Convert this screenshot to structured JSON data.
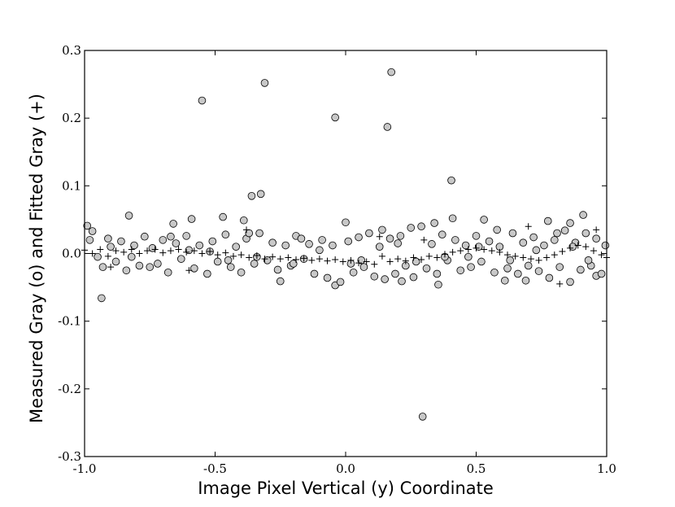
{
  "chart_data": {
    "type": "scatter",
    "title": "",
    "xlabel": "Image Pixel Vertical (y)  Coordinate",
    "ylabel": "Measured Gray (o) and Fitted Gray (+)",
    "xlim": [
      -1.0,
      1.0
    ],
    "ylim": [
      -0.3,
      0.3
    ],
    "x_ticks": [
      "-1.0",
      "-0.5",
      "0.0",
      "0.5",
      "1.0"
    ],
    "y_ticks": [
      "0.3",
      "0.2",
      "0.1",
      "0.0",
      "-0.1",
      "-0.2",
      "-0.3"
    ],
    "grid": false,
    "legend": "none",
    "series": [
      {
        "marker": "circle",
        "color": "#c8c8c8",
        "edge_color": "#000000",
        "points": [
          [
            -0.55,
            0.226
          ],
          [
            -0.31,
            0.252
          ],
          [
            -0.04,
            0.201
          ],
          [
            0.16,
            0.187
          ],
          [
            0.175,
            0.268
          ],
          [
            0.405,
            0.108
          ],
          [
            -0.36,
            0.085
          ],
          [
            -0.325,
            0.088
          ],
          [
            -0.83,
            0.056
          ],
          [
            -0.47,
            0.054
          ],
          [
            -0.59,
            0.051
          ],
          [
            -0.39,
            0.049
          ],
          [
            0.41,
            0.052
          ],
          [
            0.53,
            0.05
          ],
          [
            0.91,
            0.057
          ],
          [
            0.86,
            0.045
          ],
          [
            0.775,
            0.048
          ],
          [
            -0.66,
            0.044
          ],
          [
            0.0,
            0.046
          ],
          [
            -0.935,
            -0.066
          ],
          [
            0.295,
            -0.241
          ],
          [
            0.355,
            -0.046
          ],
          [
            -0.04,
            -0.047
          ],
          [
            0.215,
            -0.041
          ],
          [
            -0.25,
            -0.041
          ],
          [
            -0.99,
            0.041
          ],
          [
            0.61,
            -0.04
          ],
          [
            0.96,
            -0.033
          ],
          [
            -0.97,
            0.033
          ],
          [
            -0.93,
            -0.02
          ],
          [
            -0.91,
            0.022
          ],
          [
            -0.88,
            -0.012
          ],
          [
            -0.86,
            0.018
          ],
          [
            -0.84,
            -0.025
          ],
          [
            -0.81,
            0.012
          ],
          [
            -0.79,
            -0.018
          ],
          [
            -0.77,
            0.025
          ],
          [
            -0.74,
            0.008
          ],
          [
            -0.72,
            -0.015
          ],
          [
            -0.7,
            0.02
          ],
          [
            -0.68,
            -0.028
          ],
          [
            -0.65,
            0.015
          ],
          [
            -0.63,
            -0.008
          ],
          [
            -0.61,
            0.026
          ],
          [
            -0.58,
            -0.022
          ],
          [
            -0.56,
            0.012
          ],
          [
            -0.53,
            -0.03
          ],
          [
            -0.51,
            0.018
          ],
          [
            -0.49,
            -0.012
          ],
          [
            -0.46,
            0.028
          ],
          [
            -0.44,
            -0.02
          ],
          [
            -0.42,
            0.01
          ],
          [
            -0.4,
            -0.028
          ],
          [
            -0.38,
            0.022
          ],
          [
            -0.35,
            -0.015
          ],
          [
            -0.33,
            0.03
          ],
          [
            -0.3,
            -0.01
          ],
          [
            -0.28,
            0.016
          ],
          [
            -0.26,
            -0.024
          ],
          [
            -0.23,
            0.012
          ],
          [
            -0.21,
            -0.018
          ],
          [
            -0.19,
            0.026
          ],
          [
            -0.16,
            -0.008
          ],
          [
            -0.14,
            0.014
          ],
          [
            -0.12,
            -0.03
          ],
          [
            -0.09,
            0.02
          ],
          [
            -0.07,
            -0.036
          ],
          [
            -0.05,
            0.012
          ],
          [
            -0.02,
            -0.042
          ],
          [
            0.01,
            0.018
          ],
          [
            0.03,
            -0.028
          ],
          [
            0.05,
            0.024
          ],
          [
            0.07,
            -0.02
          ],
          [
            0.09,
            0.03
          ],
          [
            0.11,
            -0.034
          ],
          [
            0.13,
            0.01
          ],
          [
            0.15,
            -0.038
          ],
          [
            0.17,
            0.022
          ],
          [
            0.19,
            -0.03
          ],
          [
            0.21,
            0.026
          ],
          [
            0.23,
            -0.018
          ],
          [
            0.25,
            0.038
          ],
          [
            0.27,
            -0.012
          ],
          [
            0.29,
            0.04
          ],
          [
            0.31,
            -0.022
          ],
          [
            0.33,
            0.014
          ],
          [
            0.35,
            -0.03
          ],
          [
            0.37,
            0.028
          ],
          [
            0.39,
            -0.01
          ],
          [
            0.42,
            0.02
          ],
          [
            0.44,
            -0.025
          ],
          [
            0.46,
            0.012
          ],
          [
            0.48,
            -0.02
          ],
          [
            0.5,
            0.026
          ],
          [
            0.52,
            -0.012
          ],
          [
            0.55,
            0.018
          ],
          [
            0.57,
            -0.028
          ],
          [
            0.59,
            0.01
          ],
          [
            0.62,
            -0.022
          ],
          [
            0.64,
            0.03
          ],
          [
            0.66,
            -0.03
          ],
          [
            0.68,
            0.016
          ],
          [
            0.7,
            -0.018
          ],
          [
            0.72,
            0.024
          ],
          [
            0.74,
            -0.026
          ],
          [
            0.76,
            0.012
          ],
          [
            0.78,
            -0.036
          ],
          [
            0.8,
            0.02
          ],
          [
            0.82,
            -0.02
          ],
          [
            0.84,
            0.034
          ],
          [
            0.86,
            -0.042
          ],
          [
            0.88,
            0.016
          ],
          [
            0.9,
            -0.024
          ],
          [
            0.92,
            0.03
          ],
          [
            0.94,
            -0.018
          ],
          [
            0.96,
            0.022
          ],
          [
            0.98,
            -0.03
          ],
          [
            0.995,
            0.012
          ],
          [
            -0.95,
            -0.005
          ],
          [
            -0.9,
            0.01
          ],
          [
            -0.75,
            -0.02
          ],
          [
            -0.6,
            0.005
          ],
          [
            -0.45,
            -0.01
          ],
          [
            -0.37,
            0.03
          ],
          [
            -0.2,
            -0.015
          ],
          [
            -0.1,
            0.005
          ],
          [
            0.06,
            -0.01
          ],
          [
            0.2,
            0.015
          ],
          [
            0.38,
            -0.005
          ],
          [
            0.51,
            0.01
          ],
          [
            0.63,
            -0.01
          ],
          [
            0.73,
            0.005
          ],
          [
            0.87,
            0.01
          ],
          [
            -0.98,
            0.02
          ],
          [
            -0.82,
            -0.005
          ],
          [
            -0.67,
            0.025
          ],
          [
            -0.52,
            0.003
          ],
          [
            -0.34,
            -0.005
          ],
          [
            -0.17,
            0.022
          ],
          [
            0.02,
            -0.015
          ],
          [
            0.14,
            0.035
          ],
          [
            0.26,
            -0.035
          ],
          [
            0.34,
            0.045
          ],
          [
            0.47,
            -0.005
          ],
          [
            0.58,
            0.035
          ],
          [
            0.69,
            -0.04
          ],
          [
            0.81,
            0.03
          ],
          [
            0.93,
            -0.01
          ]
        ]
      },
      {
        "marker": "plus",
        "color": "#000000",
        "points": [
          [
            -1.0,
            0.005
          ],
          [
            -0.97,
            0.0
          ],
          [
            -0.94,
            0.006
          ],
          [
            -0.91,
            -0.004
          ],
          [
            -0.88,
            0.004
          ],
          [
            -0.85,
            0.002
          ],
          [
            -0.82,
            0.006
          ],
          [
            -0.79,
            0.0
          ],
          [
            -0.76,
            0.004
          ],
          [
            -0.73,
            0.006
          ],
          [
            -0.7,
            0.001
          ],
          [
            -0.67,
            0.004
          ],
          [
            -0.64,
            0.006
          ],
          [
            -0.61,
            0.002
          ],
          [
            -0.58,
            0.004
          ],
          [
            -0.55,
            0.0
          ],
          [
            -0.52,
            0.003
          ],
          [
            -0.49,
            -0.002
          ],
          [
            -0.46,
            0.001
          ],
          [
            -0.43,
            -0.004
          ],
          [
            -0.4,
            -0.002
          ],
          [
            -0.37,
            -0.006
          ],
          [
            -0.34,
            -0.003
          ],
          [
            -0.31,
            -0.008
          ],
          [
            -0.28,
            -0.005
          ],
          [
            -0.25,
            -0.008
          ],
          [
            -0.22,
            -0.006
          ],
          [
            -0.19,
            -0.009
          ],
          [
            -0.16,
            -0.007
          ],
          [
            -0.13,
            -0.01
          ],
          [
            -0.1,
            -0.008
          ],
          [
            -0.07,
            -0.011
          ],
          [
            -0.04,
            -0.009
          ],
          [
            -0.01,
            -0.012
          ],
          [
            0.02,
            -0.01
          ],
          [
            0.05,
            -0.014
          ],
          [
            0.08,
            -0.012
          ],
          [
            0.11,
            -0.016
          ],
          [
            0.14,
            -0.004
          ],
          [
            0.17,
            -0.012
          ],
          [
            0.2,
            -0.008
          ],
          [
            0.23,
            -0.011
          ],
          [
            0.26,
            -0.006
          ],
          [
            0.29,
            -0.009
          ],
          [
            0.32,
            -0.004
          ],
          [
            0.35,
            -0.006
          ],
          [
            0.38,
            -0.001
          ],
          [
            0.41,
            0.002
          ],
          [
            0.44,
            0.004
          ],
          [
            0.47,
            0.006
          ],
          [
            0.5,
            0.008
          ],
          [
            0.53,
            0.006
          ],
          [
            0.56,
            0.004
          ],
          [
            0.59,
            0.002
          ],
          [
            0.62,
            -0.002
          ],
          [
            0.65,
            -0.004
          ],
          [
            0.68,
            -0.006
          ],
          [
            0.71,
            -0.008
          ],
          [
            0.74,
            -0.01
          ],
          [
            0.77,
            -0.006
          ],
          [
            0.8,
            -0.002
          ],
          [
            0.83,
            0.003
          ],
          [
            0.86,
            0.008
          ],
          [
            0.89,
            0.012
          ],
          [
            0.92,
            0.01
          ],
          [
            0.95,
            0.004
          ],
          [
            0.98,
            -0.002
          ],
          [
            1.0,
            -0.006
          ],
          [
            -0.38,
            0.035
          ],
          [
            0.82,
            -0.045
          ],
          [
            0.96,
            0.035
          ],
          [
            0.7,
            0.04
          ],
          [
            0.13,
            0.025
          ],
          [
            -0.6,
            -0.025
          ],
          [
            0.3,
            0.02
          ],
          [
            -0.9,
            -0.02
          ]
        ]
      }
    ]
  }
}
